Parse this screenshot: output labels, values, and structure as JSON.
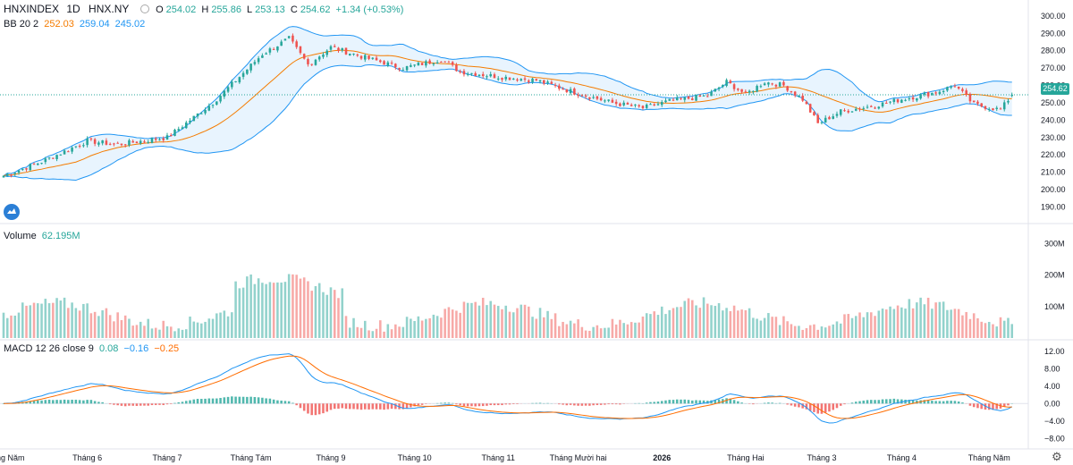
{
  "header": {
    "symbol": "HNXINDEX",
    "interval": "1D",
    "exchange": "HNX.NY",
    "o_label": "O",
    "o_value": "254.02",
    "h_label": "H",
    "h_value": "255.86",
    "l_label": "L",
    "l_value": "253.13",
    "c_label": "C",
    "c_value": "254.62",
    "change": "+1.34 (+0.53%)",
    "bb_label": "BB 20 2",
    "bb_basis": "252.03",
    "bb_upper": "259.04",
    "bb_lower": "245.02",
    "vol_label": "Volume",
    "vol_value": "62.195M",
    "macd_label": "MACD 12 26 close 9",
    "macd_hist": "0.08",
    "macd_line": "−0.16",
    "macd_signal": "−0.25",
    "last_price": "254.62"
  },
  "colors": {
    "up": "#26a69a",
    "down": "#ef5350",
    "bb_basis": "#f57c00",
    "bb_band": "#2196f3",
    "macd_line": "#2196f3",
    "macd_signal": "#ff6d00"
  },
  "icons": {
    "logo": "tradingview-logo-icon",
    "settings": "gear-icon"
  },
  "chart_data": [
    {
      "type": "candlestick",
      "title": "HNXINDEX",
      "price_ticks": [
        "300.00",
        "290.00",
        "280.00",
        "270.00",
        "260.00",
        "250.00",
        "240.00",
        "230.00",
        "220.00",
        "210.00",
        "200.00",
        "190.00"
      ],
      "ylim": [
        183,
        302
      ],
      "x_labels": [
        "Tháng Năm",
        "Tháng 6",
        "Tháng 7",
        "Tháng Tám",
        "Tháng 9",
        "Tháng 10",
        "Tháng 11",
        "Tháng Mười hai",
        "2026",
        "Tháng Hai",
        "Tháng 3",
        "Tháng 4",
        "Tháng Năm"
      ],
      "x_label_days": [
        0,
        22,
        43,
        65,
        86,
        108,
        130,
        151,
        173,
        195,
        215,
        236,
        259
      ],
      "close_anchors": [
        [
          0,
          208
        ],
        [
          10,
          216
        ],
        [
          22,
          228
        ],
        [
          30,
          226
        ],
        [
          43,
          230
        ],
        [
          55,
          250
        ],
        [
          62,
          265
        ],
        [
          68,
          278
        ],
        [
          75,
          287
        ],
        [
          80,
          272
        ],
        [
          86,
          282
        ],
        [
          95,
          276
        ],
        [
          105,
          270
        ],
        [
          115,
          275
        ],
        [
          120,
          268
        ],
        [
          130,
          265
        ],
        [
          140,
          263
        ],
        [
          150,
          256
        ],
        [
          160,
          250
        ],
        [
          168,
          247
        ],
        [
          175,
          251
        ],
        [
          185,
          254
        ],
        [
          190,
          262
        ],
        [
          195,
          255
        ],
        [
          200,
          262
        ],
        [
          205,
          260
        ],
        [
          210,
          252
        ],
        [
          214,
          238
        ],
        [
          220,
          245
        ],
        [
          228,
          248
        ],
        [
          236,
          252
        ],
        [
          245,
          256
        ],
        [
          250,
          260
        ],
        [
          255,
          249
        ],
        [
          262,
          246
        ],
        [
          265,
          254.62
        ]
      ],
      "last_bar": {
        "open": 254.02,
        "high": 255.86,
        "low": 253.13,
        "close": 254.62
      },
      "indicator": {
        "name": "Bollinger Bands",
        "period": 20,
        "mult": 2,
        "basis": 252.03,
        "upper": 259.04,
        "lower": 245.02
      }
    },
    {
      "type": "bar",
      "title": "Volume",
      "ticks": [
        "300M",
        "200M",
        "100M"
      ],
      "ylim": [
        0,
        330
      ],
      "last_value": "62.195M"
    },
    {
      "type": "line",
      "title": "MACD 12 26 close 9",
      "ticks": [
        "12.00",
        "8.00",
        "4.00",
        "0.00",
        "−4.00",
        "−8.00"
      ],
      "ylim": [
        -10,
        13
      ],
      "last": {
        "histogram": 0.08,
        "macd": -0.16,
        "signal": -0.25
      }
    }
  ]
}
